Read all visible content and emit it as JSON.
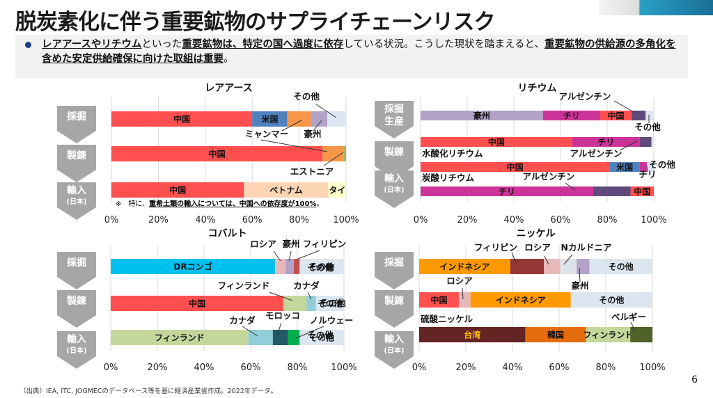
{
  "header": {
    "title": "脱炭素化に伴う重要鉱物のサプライチェーンリスク",
    "summary_parts": [
      {
        "text": "レアアースやリチウム",
        "bold": true
      },
      {
        "text": "といった",
        "bold": false
      },
      {
        "text": "重要鉱物は、特定の国へ過度に依存",
        "bold": true
      },
      {
        "text": "している状況。こうした現状を踏まえると、",
        "bold": false
      },
      {
        "text": "重要鉱物の供給源の多角化を含めた安定供給確保に向けた取組は重要",
        "bold": true
      },
      {
        "text": "。",
        "bold": false
      }
    ]
  },
  "footer": {
    "source": "（出典）IEA, ITC, JOGMECのデータベース等を基に経済産業省作成。2022年データ。",
    "page_number": "6"
  },
  "stages": {
    "mining": "採掘",
    "mining_production": [
      "採掘",
      "生産"
    ],
    "refining": "製錬",
    "import": "輸入",
    "import_sub": "(日本)"
  },
  "chart_data": [
    {
      "type": "bar",
      "orientation": "horizontal-stacked-100",
      "title": "レアアース",
      "xlim": [
        0,
        100
      ],
      "xticks": [
        "0%",
        "20%",
        "40%",
        "60%",
        "80%",
        "100%"
      ],
      "grid": true,
      "rows": [
        {
          "stage": "採掘",
          "segments": [
            {
              "name": "中国",
              "value": 60,
              "color": "#ff4f4f",
              "inside": true
            },
            {
              "name": "米国",
              "value": 15,
              "color": "#4f81bd",
              "inside": true
            },
            {
              "name": "ミャンマー",
              "value": 10,
              "color": "#f79646",
              "inside": false
            },
            {
              "name": "豪州",
              "value": 7,
              "color": "#b3a2c7",
              "inside": false
            },
            {
              "name": "その他",
              "value": 8,
              "color": "#dce6f1",
              "inside": false
            }
          ]
        },
        {
          "stage": "製錬",
          "segments": [
            {
              "name": "中国",
              "value": 90,
              "color": "#ff4f4f",
              "inside": true
            },
            {
              "name": "ミャンマー",
              "value": 9,
              "color": "#f79646",
              "inside": false
            },
            {
              "name": "エストニア",
              "value": 1,
              "color": "#9bbb59",
              "inside": false
            }
          ]
        },
        {
          "stage": "輸入",
          "segments": [
            {
              "name": "中国",
              "value": 56.5,
              "color": "#ff4f4f",
              "inside": true
            },
            {
              "name": "ベトナム",
              "value": 36,
              "color": "#fcd5b5",
              "inside": true
            },
            {
              "name": "タイ",
              "value": 7.5,
              "color": "#ffffcc",
              "inside": true
            }
          ]
        }
      ],
      "annotations": [
        "その他",
        "ミャンマー",
        "豪州",
        "エストニア"
      ],
      "note": {
        "prefix": "※　特に、",
        "bold": "重希土類の輸入については、中国への依存度が100%",
        "suffix": "。"
      }
    },
    {
      "type": "bar",
      "orientation": "horizontal-stacked-100",
      "title": "リチウム",
      "xlim": [
        0,
        100
      ],
      "xticks": [
        "0%",
        "20%",
        "40%",
        "60%",
        "80%",
        "100%"
      ],
      "grid": true,
      "rows": [
        {
          "stage": "採掘生産",
          "segments": [
            {
              "name": "豪州",
              "value": 52.5,
              "color": "#b3a2c7",
              "inside": true
            },
            {
              "name": "チリ",
              "value": 24.5,
              "color": "#cc3399",
              "inside": true
            },
            {
              "name": "中国",
              "value": 13.5,
              "color": "#ff4f4f",
              "inside": true
            },
            {
              "name": "アルゼンチン",
              "value": 6,
              "color": "#604a7b",
              "inside": false
            },
            {
              "name": "その他",
              "value": 3.5,
              "color": "#dce6f1",
              "inside": false
            }
          ]
        },
        {
          "stage": "製錬",
          "segments": [
            {
              "name": "中国",
              "value": 65,
              "color": "#ff4f4f",
              "inside": true
            },
            {
              "name": "チリ",
              "value": 29,
              "color": "#cc3399",
              "inside": true
            },
            {
              "name": "アルゼンチン",
              "value": 5,
              "color": "#604a7b",
              "inside": false
            },
            {
              "name": "その他",
              "value": 1,
              "color": "#dce6f1",
              "inside": false
            }
          ]
        },
        {
          "stage": "輸入",
          "product": "水酸化リチウム",
          "segments": [
            {
              "name": "中国",
              "value": 81,
              "color": "#ff4f4f",
              "inside": true
            },
            {
              "name": "米国",
              "value": 13,
              "color": "#4f81bd",
              "inside": true
            },
            {
              "name": "チリ",
              "value": 3,
              "color": "#cc3399",
              "inside": false
            },
            {
              "name": "その他",
              "value": 3,
              "color": "#dce6f1",
              "inside": false
            }
          ]
        },
        {
          "stage": "輸入",
          "product": "炭酸リチウム",
          "segments": [
            {
              "name": "チリ",
              "value": 74,
              "color": "#cc3399",
              "inside": true
            },
            {
              "name": "アルゼンチン",
              "value": 16,
              "color": "#604a7b",
              "inside": false
            },
            {
              "name": "中国",
              "value": 10,
              "color": "#ff4f4f",
              "inside": true
            }
          ]
        }
      ],
      "annotations": [
        "アルゼンチン",
        "その他",
        "アルゼンチン",
        "その他",
        "チリ",
        "アルゼンチン"
      ]
    },
    {
      "type": "bar",
      "orientation": "horizontal-stacked-100",
      "title": "コバルト",
      "xlim": [
        0,
        100
      ],
      "xticks": [
        "0%",
        "20%",
        "40%",
        "60%",
        "80%",
        "100%"
      ],
      "grid": true,
      "rows": [
        {
          "stage": "採掘",
          "segments": [
            {
              "name": "DRコンゴ",
              "value": 70.5,
              "color": "#00c0f0",
              "inside": true
            },
            {
              "name": "ロシア",
              "value": 4.5,
              "color": "#e6b9b8",
              "inside": false
            },
            {
              "name": "豪州",
              "value": 3.5,
              "color": "#b3a2c7",
              "inside": false
            },
            {
              "name": "フィリピン",
              "value": 2.5,
              "color": "#c0504d",
              "inside": false
            },
            {
              "name": "その他",
              "value": 19,
              "color": "#dce6f1",
              "inside": true
            }
          ]
        },
        {
          "stage": "製錬",
          "segments": [
            {
              "name": "中国",
              "value": 74,
              "color": "#ff4f4f",
              "inside": true
            },
            {
              "name": "フィンランド",
              "value": 10,
              "color": "#c4d79b",
              "inside": false
            },
            {
              "name": "カナダ",
              "value": 4,
              "color": "#92cddc",
              "inside": false
            },
            {
              "name": "その他",
              "value": 12,
              "color": "#dce6f1",
              "inside": true
            }
          ]
        },
        {
          "stage": "輸入",
          "segments": [
            {
              "name": "フィンランド",
              "value": 59,
              "color": "#c4d79b",
              "inside": true
            },
            {
              "name": "カナダ",
              "value": 10.5,
              "color": "#92cddc",
              "inside": false
            },
            {
              "name": "モロッコ",
              "value": 6.5,
              "color": "#215967",
              "inside": false
            },
            {
              "name": "ノルウェー",
              "value": 5,
              "color": "#00b050",
              "inside": false
            },
            {
              "name": "その他",
              "value": 19,
              "color": "#dce6f1",
              "inside": true
            }
          ]
        }
      ],
      "annotations": [
        "ロシア",
        "豪州",
        "フィリピン",
        "フィンランド",
        "カナダ",
        "カナダ",
        "モロッコ",
        "ノルウェー"
      ]
    },
    {
      "type": "bar",
      "orientation": "horizontal-stacked-100",
      "title": "ニッケル",
      "xlim": [
        0,
        100
      ],
      "xticks": [
        "0%",
        "20%",
        "40%",
        "60%",
        "80%",
        "100%"
      ],
      "grid": true,
      "rows": [
        {
          "stage": "採掘",
          "segments": [
            {
              "name": "インドネシア",
              "value": 39,
              "color": "#ff9900",
              "inside": true
            },
            {
              "name": "フィリピン",
              "value": 14.5,
              "color": "#953735",
              "inside": false
            },
            {
              "name": "ロシア",
              "value": 7,
              "color": "#e6b9b8",
              "inside": false
            },
            {
              "name": "Nカルドニア",
              "value": 7,
              "color": "#dde3ea",
              "inside": false
            },
            {
              "name": "豪州",
              "value": 5.5,
              "color": "#b3a2c7",
              "inside": false
            },
            {
              "name": "その他",
              "value": 27,
              "color": "#dce6f1",
              "inside": true
            }
          ]
        },
        {
          "stage": "製錬",
          "segments": [
            {
              "name": "中国",
              "value": 17,
              "color": "#ff4f4f",
              "inside": true
            },
            {
              "name": "ロシア",
              "value": 5,
              "color": "#e6b9b8",
              "inside": false
            },
            {
              "name": "インドネシア",
              "value": 43,
              "color": "#ff9900",
              "inside": true
            },
            {
              "name": "その他",
              "value": 35,
              "color": "#dce6f1",
              "inside": true
            }
          ]
        },
        {
          "stage": "輸入",
          "product": "硫酸ニッケル",
          "segments": [
            {
              "name": "台湾",
              "value": 45.5,
              "color": "#632523",
              "inside": true,
              "text_color": "#ffc000"
            },
            {
              "name": "韓国",
              "value": 26,
              "color": "#e46c0a",
              "inside": true
            },
            {
              "name": "フィンランド",
              "value": 19,
              "color": "#c4d79b",
              "inside": true
            },
            {
              "name": "ベルギー",
              "value": 9.5,
              "color": "#4f6228",
              "inside": false
            }
          ]
        }
      ],
      "annotations": [
        "フィリピン",
        "ロシア",
        "Nカルドニア",
        "豪州",
        "ロシア",
        "ベルギー"
      ]
    }
  ]
}
